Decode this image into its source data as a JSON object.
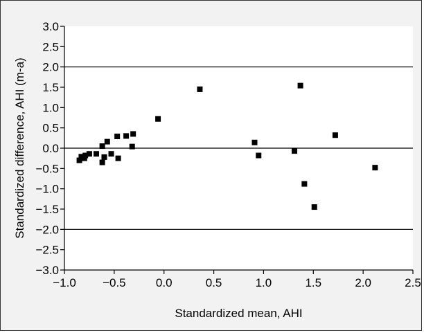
{
  "chart_data": {
    "type": "scatter",
    "title": "",
    "xlabel": "Standardized mean, AHI",
    "ylabel": "Standardized difference, AHI (m-a)",
    "xlim": [
      -1.0,
      2.5
    ],
    "ylim": [
      -3.0,
      3.0
    ],
    "xticks": [
      -1.0,
      -0.5,
      0.0,
      0.5,
      1.0,
      1.5,
      2.0,
      2.5
    ],
    "yticks": [
      3.0,
      2.5,
      2.0,
      1.5,
      1.0,
      0.5,
      0.0,
      -0.5,
      -1.0,
      -1.5,
      -2.0,
      -2.5,
      -3.0
    ],
    "xtick_labels": [
      "−1.0",
      "−0.5",
      "0.0",
      "0.5",
      "1.0",
      "1.5",
      "2.0",
      "2.5"
    ],
    "ytick_labels": [
      "3.0",
      "2.5",
      "2.0",
      "1.5",
      "1.0",
      "0.5",
      "0.0",
      "−0.5",
      "−1.0",
      "−1.5",
      "−2.0",
      "−2.5",
      "−3.0"
    ],
    "reference_lines_y": [
      2.0,
      0.0,
      -2.0
    ],
    "grid": false,
    "marker_color": "#000000",
    "points": [
      {
        "x": -0.85,
        "y": -0.3
      },
      {
        "x": -0.83,
        "y": -0.21
      },
      {
        "x": -0.8,
        "y": -0.25
      },
      {
        "x": -0.79,
        "y": -0.18
      },
      {
        "x": -0.75,
        "y": -0.14
      },
      {
        "x": -0.68,
        "y": -0.14
      },
      {
        "x": -0.62,
        "y": -0.35
      },
      {
        "x": -0.62,
        "y": 0.05
      },
      {
        "x": -0.6,
        "y": -0.22
      },
      {
        "x": -0.57,
        "y": 0.16
      },
      {
        "x": -0.53,
        "y": -0.14
      },
      {
        "x": -0.47,
        "y": 0.29
      },
      {
        "x": -0.46,
        "y": -0.25
      },
      {
        "x": -0.38,
        "y": 0.3
      },
      {
        "x": -0.32,
        "y": 0.04
      },
      {
        "x": -0.31,
        "y": 0.35
      },
      {
        "x": -0.06,
        "y": 0.72
      },
      {
        "x": 0.36,
        "y": 1.45
      },
      {
        "x": 0.91,
        "y": 0.14
      },
      {
        "x": 0.95,
        "y": -0.18
      },
      {
        "x": 1.31,
        "y": -0.07
      },
      {
        "x": 1.37,
        "y": 1.54
      },
      {
        "x": 1.41,
        "y": -0.88
      },
      {
        "x": 1.51,
        "y": -1.45
      },
      {
        "x": 1.72,
        "y": 0.32
      },
      {
        "x": 2.12,
        "y": -0.48
      }
    ]
  }
}
